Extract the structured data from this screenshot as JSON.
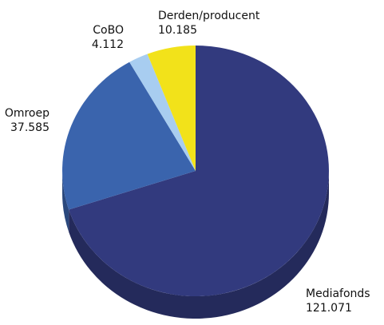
{
  "chart_data": {
    "type": "pie",
    "categories": [
      "Mediafonds",
      "Omroep",
      "CoBO",
      "Derden/producent"
    ],
    "values": [
      121071,
      37585,
      4112,
      10185
    ],
    "value_labels": [
      "121.071",
      "37.585",
      "4.112",
      "10.185"
    ],
    "colors": [
      "#323a7e",
      "#3a64ad",
      "#a8cdf0",
      "#f2e21a"
    ]
  }
}
